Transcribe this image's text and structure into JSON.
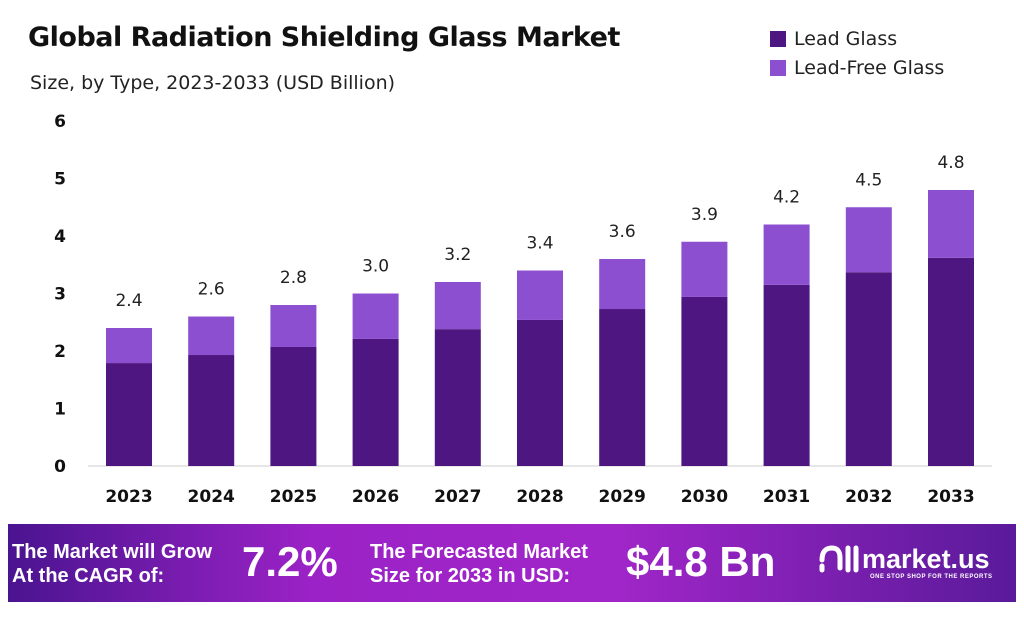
{
  "chart_data": {
    "type": "bar",
    "stacked": true,
    "title": "Global Radiation Shielding Glass Market",
    "subtitle": "Size, by Type, 2023-2033 (USD Billion)",
    "categories": [
      "2023",
      "2024",
      "2025",
      "2026",
      "2027",
      "2028",
      "2029",
      "2030",
      "2031",
      "2032",
      "2033"
    ],
    "series": [
      {
        "name": "Lead Glass",
        "color": "#4e1680",
        "values": [
          1.79,
          1.93,
          2.07,
          2.21,
          2.38,
          2.54,
          2.73,
          2.94,
          3.15,
          3.37,
          3.62
        ]
      },
      {
        "name": "Lead-Free Glass",
        "color": "#8c4fcf",
        "values": [
          0.61,
          0.67,
          0.73,
          0.79,
          0.82,
          0.86,
          0.87,
          0.96,
          1.05,
          1.13,
          1.18
        ]
      }
    ],
    "totals_labels": [
      "2.4",
      "2.6",
      "2.8",
      "3.0",
      "3.2",
      "3.4",
      "3.6",
      "3.9",
      "4.2",
      "4.5",
      "4.8"
    ],
    "ylim": [
      0,
      6
    ],
    "yticks": [
      "0",
      "1",
      "2",
      "3",
      "4",
      "5",
      "6"
    ],
    "grid": false,
    "legend": "top-right"
  },
  "footer": {
    "cagr_text_1": "The Market will Grow",
    "cagr_text_2": "At the CAGR of:",
    "cagr_value": "7.2%",
    "forecast_text_1": "The Forecasted Market",
    "forecast_text_2": "Size for 2033 in USD:",
    "forecast_value": "$4.8 Bn",
    "logo": "market.us",
    "tagline": "ONE STOP SHOP FOR THE REPORTS"
  }
}
